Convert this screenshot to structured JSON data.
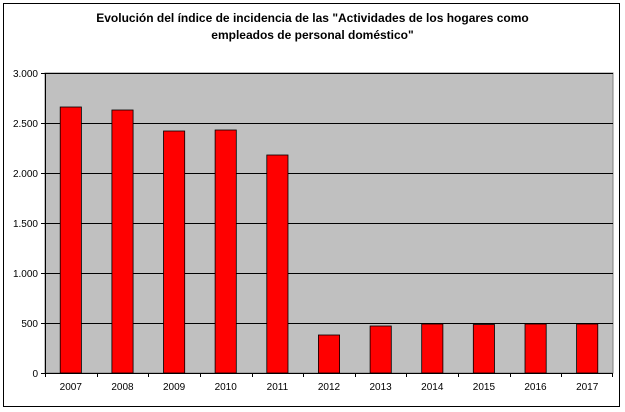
{
  "chart_data": {
    "type": "bar",
    "title_lines": [
      "Evolución del índice de incidencia de las \"Actividades de los hogares como",
      "empleados de personal doméstico\""
    ],
    "categories": [
      "2007",
      "2008",
      "2009",
      "2010",
      "2011",
      "2012",
      "2013",
      "2014",
      "2015",
      "2016",
      "2017"
    ],
    "values": [
      2660,
      2630,
      2420,
      2430,
      2180,
      380,
      470,
      490,
      485,
      490,
      490
    ],
    "ylim": [
      0,
      3000
    ],
    "yticks": [
      0,
      500,
      1000,
      1500,
      2000,
      2500,
      3000
    ],
    "ytick_labels": [
      "0",
      "500",
      "1.000",
      "1.500",
      "2.000",
      "2.500",
      "3.000"
    ],
    "grid": true,
    "legend": "none",
    "colors": {
      "bar_fill": "#ff0000",
      "bar_edge": "#000000",
      "plot_bg": "#c0c0c0",
      "grid": "#000000"
    }
  }
}
